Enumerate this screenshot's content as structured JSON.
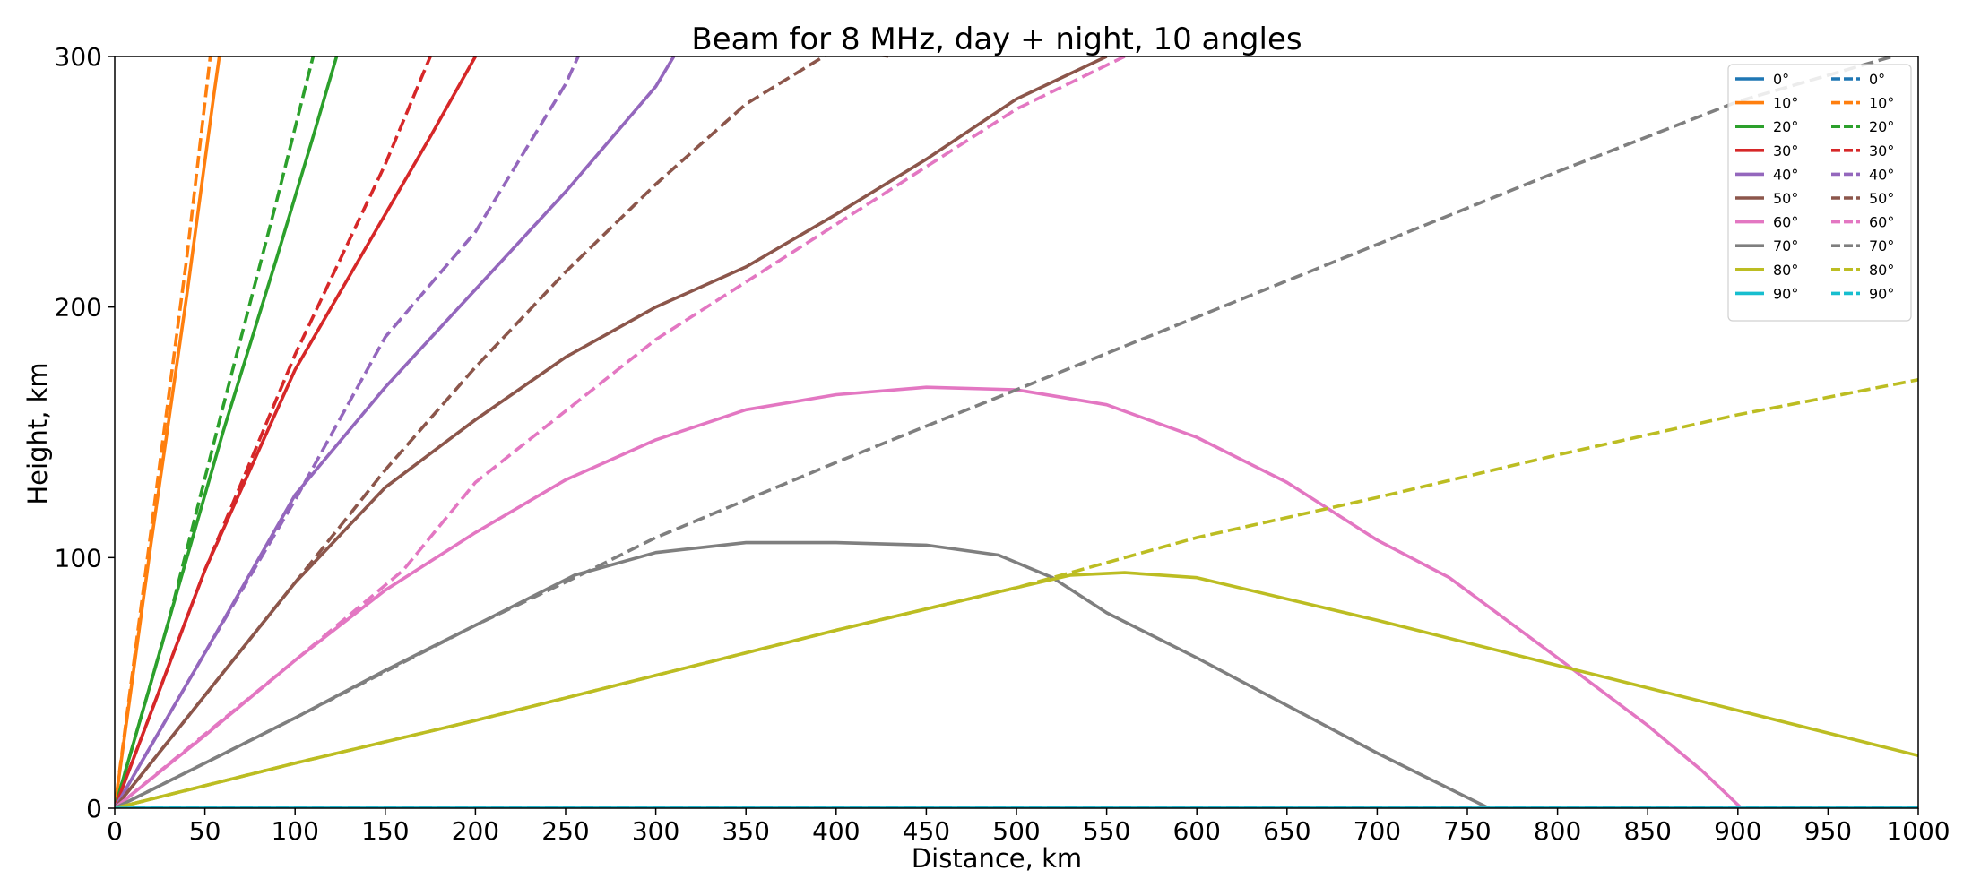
{
  "chart_data": {
    "type": "line",
    "title": "Beam for 8 MHz, day + night, 10 angles",
    "xlabel": "Distance, km",
    "ylabel": "Height, km",
    "xlim": [
      0,
      1000
    ],
    "ylim": [
      0,
      300
    ],
    "xticks": [
      "0",
      "50",
      "100",
      "150",
      "200",
      "250",
      "300",
      "350",
      "400",
      "450",
      "500",
      "550",
      "600",
      "650",
      "700",
      "750",
      "800",
      "850",
      "900",
      "950",
      "1000"
    ],
    "yticks": [
      "0",
      "100",
      "200",
      "300"
    ],
    "grid": false,
    "legend_position": "upper-right",
    "legend_columns": 2,
    "series": [
      {
        "name": "0°",
        "style": "solid",
        "color": "#1f77b4",
        "x": [
          0,
          1000
        ],
        "y": [
          0,
          0
        ]
      },
      {
        "name": "10°",
        "style": "solid",
        "color": "#ff7f0e",
        "x": [
          0,
          20,
          40,
          55,
          58
        ],
        "y": [
          0,
          105,
          205,
          285,
          300
        ]
      },
      {
        "name": "20°",
        "style": "solid",
        "color": "#2ca02c",
        "x": [
          0,
          30,
          60,
          90,
          110,
          123
        ],
        "y": [
          0,
          75,
          150,
          220,
          268,
          300
        ]
      },
      {
        "name": "30°",
        "style": "solid",
        "color": "#d62728",
        "x": [
          0,
          50,
          100,
          150,
          175,
          200
        ],
        "y": [
          0,
          95,
          175,
          237,
          268,
          300
        ]
      },
      {
        "name": "40°",
        "style": "solid",
        "color": "#9467bd",
        "x": [
          0,
          50,
          100,
          150,
          200,
          250,
          300,
          310
        ],
        "y": [
          0,
          62,
          125,
          168,
          207,
          246,
          288,
          300
        ]
      },
      {
        "name": "50°",
        "style": "solid",
        "color": "#8c564b",
        "x": [
          0,
          50,
          100,
          150,
          200,
          250,
          300,
          350,
          400,
          450,
          500,
          550
        ],
        "y": [
          0,
          45,
          90,
          128,
          155,
          180,
          200,
          216,
          237,
          259,
          283,
          300
        ]
      },
      {
        "name": "60°",
        "style": "solid",
        "color": "#e377c2",
        "x": [
          0,
          50,
          100,
          150,
          200,
          250,
          300,
          350,
          400,
          450,
          500,
          550,
          600,
          650,
          700,
          740,
          800,
          850,
          880,
          902
        ],
        "y": [
          0,
          29,
          59,
          87,
          110,
          131,
          147,
          159,
          165,
          168,
          167,
          161,
          148,
          130,
          107,
          92,
          60,
          33,
          15,
          0
        ]
      },
      {
        "name": "70°",
        "style": "solid",
        "color": "#7f7f7f",
        "x": [
          0,
          50,
          100,
          150,
          200,
          255,
          300,
          350,
          400,
          450,
          490,
          520,
          550,
          600,
          650,
          700,
          762
        ],
        "y": [
          0,
          18,
          36,
          55,
          73,
          93,
          102,
          106,
          106,
          105,
          101,
          92,
          78,
          60,
          41,
          22,
          0
        ]
      },
      {
        "name": "80°",
        "style": "solid",
        "color": "#bcbd22",
        "x": [
          0,
          100,
          200,
          300,
          400,
          500,
          530,
          560,
          600,
          700,
          800,
          900,
          1000
        ],
        "y": [
          0,
          18,
          35,
          53,
          71,
          88,
          93,
          94,
          92,
          75,
          57,
          39,
          21
        ]
      },
      {
        "name": "90°",
        "style": "solid",
        "color": "#17becf",
        "x": [
          0,
          1000
        ],
        "y": [
          0,
          0
        ]
      },
      {
        "name": "0°",
        "style": "dashed",
        "color": "#1f77b4",
        "x": [
          0,
          1000
        ],
        "y": [
          0,
          0
        ]
      },
      {
        "name": "10°",
        "style": "dashed",
        "color": "#ff7f0e",
        "x": [
          0,
          20,
          40,
          53
        ],
        "y": [
          0,
          110,
          220,
          300
        ]
      },
      {
        "name": "20°",
        "style": "dashed",
        "color": "#2ca02c",
        "x": [
          0,
          30,
          60,
          90,
          110
        ],
        "y": [
          0,
          75,
          160,
          243,
          300
        ]
      },
      {
        "name": "30°",
        "style": "dashed",
        "color": "#d62728",
        "x": [
          0,
          50,
          100,
          150,
          175
        ],
        "y": [
          0,
          95,
          181,
          257,
          300
        ]
      },
      {
        "name": "40°",
        "style": "dashed",
        "color": "#9467bd",
        "x": [
          0,
          50,
          100,
          150,
          200,
          250,
          257
        ],
        "y": [
          0,
          62,
          123,
          188,
          230,
          289,
          300
        ]
      },
      {
        "name": "50°",
        "style": "dashed",
        "color": "#8c564b",
        "x": [
          0,
          50,
          100,
          150,
          200,
          250,
          300,
          350,
          400,
          430
        ],
        "y": [
          0,
          45,
          90,
          135,
          176,
          214,
          249,
          281,
          303,
          300
        ]
      },
      {
        "name": "60°",
        "style": "dashed",
        "color": "#e377c2",
        "x": [
          0,
          100,
          160,
          200,
          300,
          400,
          500,
          560
        ],
        "y": [
          0,
          59,
          95,
          130,
          187,
          233,
          279,
          300
        ]
      },
      {
        "name": "70°",
        "style": "dashed",
        "color": "#7f7f7f",
        "x": [
          0,
          100,
          200,
          258,
          300,
          400,
          500,
          600,
          700,
          800,
          900,
          1000
        ],
        "y": [
          0,
          36,
          73,
          93,
          108,
          138,
          167,
          196,
          225,
          254,
          282,
          303
        ]
      },
      {
        "name": "80°",
        "style": "dashed",
        "color": "#bcbd22",
        "x": [
          0,
          100,
          200,
          300,
          400,
          500,
          520,
          600,
          700,
          800,
          900,
          1000
        ],
        "y": [
          0,
          18,
          35,
          53,
          71,
          88,
          92,
          108,
          124,
          141,
          157,
          171
        ]
      },
      {
        "name": "90°",
        "style": "dashed",
        "color": "#17becf",
        "x": [
          0,
          1000
        ],
        "y": [
          0,
          0
        ]
      }
    ]
  }
}
